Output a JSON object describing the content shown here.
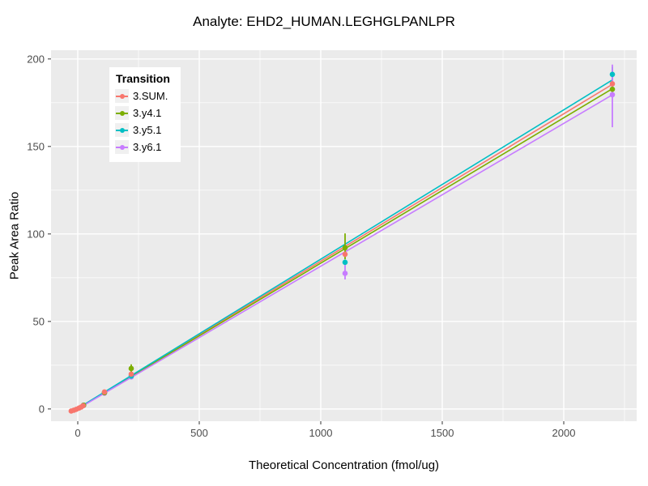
{
  "chart_data": {
    "type": "scatter",
    "title": "Analyte: EHD2_HUMAN.LEGHGLPANLPR",
    "xlabel": "Theoretical Concentration (fmol/ug)",
    "ylabel": "Peak Area Ratio",
    "xlim": [
      -110,
      2300
    ],
    "ylim": [
      -7,
      205
    ],
    "x_ticks": [
      0,
      500,
      1000,
      1500,
      2000
    ],
    "x_minor_ticks": [
      250,
      750,
      1250,
      1750,
      2250
    ],
    "y_ticks": [
      0,
      50,
      100,
      150,
      200
    ],
    "y_minor_ticks": [
      25,
      75,
      125,
      175
    ],
    "grid": true,
    "panel_bg": "#EBEBEB",
    "grid_color": "#FFFFFF",
    "tick_label_color": "#4d4d4d",
    "legend": {
      "title": "Transition",
      "position": "top-left-inset"
    },
    "series": [
      {
        "name": "3.SUM.",
        "color": "#F8766D",
        "points": [
          {
            "x": -27,
            "y": -1.2
          },
          {
            "x": -16,
            "y": -0.7
          },
          {
            "x": -6,
            "y": -0.2
          },
          {
            "x": 5,
            "y": 0.5
          },
          {
            "x": 14,
            "y": 1.1
          },
          {
            "x": 22,
            "y": 1.9
          },
          {
            "x": 110,
            "y": 9.7
          },
          {
            "x": 220,
            "y": 19.9
          },
          {
            "x": 1100,
            "y": 88.4
          },
          {
            "x": 2200,
            "y": 185.8
          }
        ],
        "errorbars": [],
        "fit": {
          "x": [
            -15,
            2200
          ],
          "y": [
            -1.0,
            185.5
          ]
        }
      },
      {
        "name": "3.y4.1",
        "color": "#7CAE00",
        "points": [
          {
            "x": 24,
            "y": 2.1
          },
          {
            "x": 110,
            "y": 9.3
          },
          {
            "x": 220,
            "y": 23.1
          },
          {
            "x": 1100,
            "y": 92.1
          },
          {
            "x": 2200,
            "y": 182.7
          }
        ],
        "errorbars": [
          {
            "x": 220,
            "lo": 20.0,
            "hi": 25.5
          },
          {
            "x": 1100,
            "lo": 85.5,
            "hi": 100.3
          }
        ],
        "fit": {
          "x": [
            -15,
            2200
          ],
          "y": [
            -1.0,
            183.0
          ]
        }
      },
      {
        "name": "3.y5.1",
        "color": "#00BFC4",
        "points": [
          {
            "x": 24,
            "y": 2.2
          },
          {
            "x": 110,
            "y": 9.4
          },
          {
            "x": 220,
            "y": 18.8
          },
          {
            "x": 1100,
            "y": 83.8
          },
          {
            "x": 2200,
            "y": 191.2
          }
        ],
        "errorbars": [
          {
            "x": 2200,
            "lo": 185.9,
            "hi": 195.5
          }
        ],
        "fit": {
          "x": [
            -15,
            2200
          ],
          "y": [
            -1.0,
            188.0
          ]
        }
      },
      {
        "name": "3.y6.1",
        "color": "#C77CFF",
        "points": [
          {
            "x": 24,
            "y": 2.0
          },
          {
            "x": 110,
            "y": 9.0
          },
          {
            "x": 220,
            "y": 18.3
          },
          {
            "x": 1100,
            "y": 77.5
          },
          {
            "x": 2200,
            "y": 179.6
          }
        ],
        "errorbars": [
          {
            "x": 1100,
            "lo": 74.0,
            "hi": 82.5
          },
          {
            "x": 2200,
            "lo": 161.0,
            "hi": 196.8
          }
        ],
        "fit": {
          "x": [
            -15,
            2200
          ],
          "y": [
            -1.2,
            179.5
          ]
        }
      }
    ]
  }
}
